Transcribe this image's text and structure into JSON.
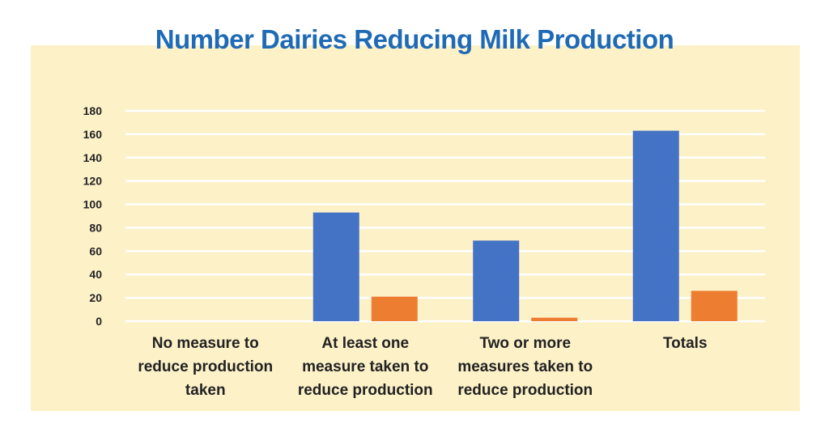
{
  "chart_data": {
    "type": "bar",
    "title": "Number Dairies Reducing Milk Production",
    "categories": [
      [
        "No measure to",
        "reduce production",
        "taken"
      ],
      [
        "At least one",
        "measure taken to",
        "reduce production"
      ],
      [
        "Two or more",
        "measures taken to",
        "reduce production"
      ],
      [
        "Totals"
      ]
    ],
    "series": [
      {
        "color": "#4472c4",
        "values": [
          0,
          93,
          69,
          163
        ]
      },
      {
        "color": "#ed7d31",
        "values": [
          0,
          21,
          3,
          26
        ]
      }
    ],
    "ylim": [
      0,
      180
    ],
    "yticks": [
      0,
      20,
      40,
      60,
      80,
      100,
      120,
      140,
      160,
      180
    ],
    "grid": true,
    "gridColor": "#ffffff",
    "panelColor": "#fdf1c8",
    "titleColor": "#1f6ab5"
  }
}
